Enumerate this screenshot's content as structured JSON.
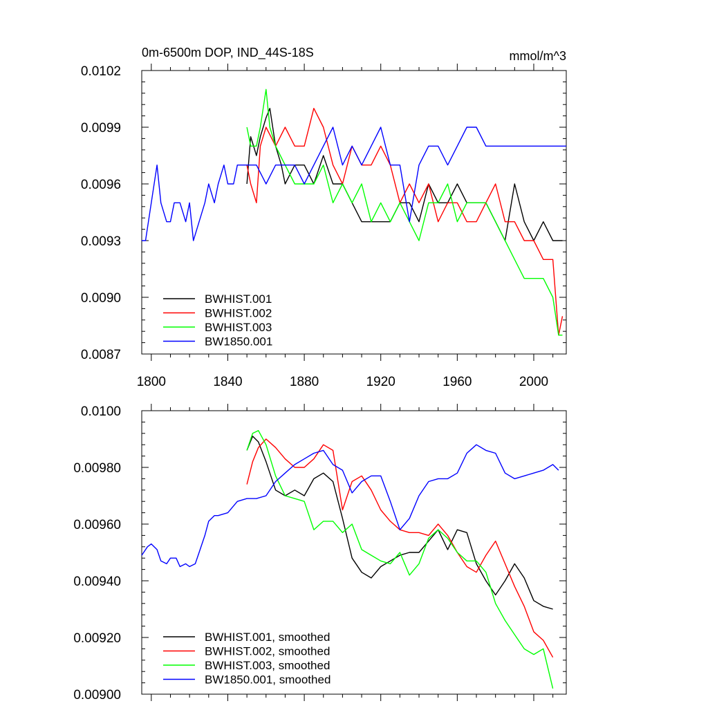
{
  "chart_data": [
    {
      "type": "line",
      "title_left": "0m-6500m DOP, IND_44S-18S",
      "title_right": "mmol/m^3",
      "xlim": [
        1795,
        2017
      ],
      "ylim": [
        0.0087,
        0.0102
      ],
      "x_ticks": [
        1800,
        1840,
        1880,
        1920,
        1960,
        2000
      ],
      "x_tick_labels": [
        "1800",
        "1840",
        "1880",
        "1920",
        "1960",
        "2000"
      ],
      "y_ticks": [
        0.0087,
        0.009,
        0.0093,
        0.0096,
        0.0099,
        0.0102
      ],
      "y_tick_labels": [
        "0.0087",
        "0.0090",
        "0.0093",
        "0.0096",
        "0.0099",
        "0.0102"
      ],
      "legend_position": "bottom-left",
      "series": [
        {
          "name": "BWHIST.001",
          "color": "#000000",
          "x": [
            1850,
            1852,
            1855,
            1857,
            1860,
            1862,
            1865,
            1868,
            1870,
            1875,
            1880,
            1885,
            1890,
            1895,
            1900,
            1905,
            1910,
            1915,
            1920,
            1925,
            1930,
            1935,
            1940,
            1945,
            1950,
            1955,
            1960,
            1965,
            1970,
            1975,
            1980,
            1985,
            1990,
            1995,
            2000,
            2005,
            2010,
            2015
          ],
          "y": [
            0.0096,
            0.00985,
            0.00975,
            0.00985,
            0.00995,
            0.01,
            0.0098,
            0.0097,
            0.0096,
            0.0097,
            0.0097,
            0.0096,
            0.00975,
            0.0096,
            0.0096,
            0.0095,
            0.0094,
            0.0094,
            0.0094,
            0.0094,
            0.0095,
            0.0095,
            0.0094,
            0.0096,
            0.0095,
            0.0095,
            0.0096,
            0.0095,
            0.0095,
            0.0095,
            0.0094,
            0.0093,
            0.0096,
            0.0094,
            0.0093,
            0.0094,
            0.0093,
            0.0093
          ]
        },
        {
          "name": "BWHIST.002",
          "color": "#ff0000",
          "x": [
            1850,
            1852,
            1855,
            1857,
            1860,
            1865,
            1870,
            1875,
            1880,
            1885,
            1890,
            1895,
            1900,
            1905,
            1910,
            1915,
            1920,
            1925,
            1930,
            1935,
            1940,
            1945,
            1950,
            1955,
            1960,
            1965,
            1970,
            1975,
            1980,
            1985,
            1990,
            1995,
            2000,
            2005,
            2010,
            2013,
            2015
          ],
          "y": [
            0.0097,
            0.0096,
            0.0095,
            0.0098,
            0.0099,
            0.0098,
            0.0099,
            0.0098,
            0.0098,
            0.01,
            0.0099,
            0.0097,
            0.0096,
            0.0098,
            0.0097,
            0.0097,
            0.0098,
            0.0097,
            0.0095,
            0.0096,
            0.0095,
            0.0096,
            0.0094,
            0.0095,
            0.0095,
            0.0094,
            0.0094,
            0.0095,
            0.0096,
            0.0094,
            0.0094,
            0.0093,
            0.0093,
            0.0092,
            0.0092,
            0.0088,
            0.0089
          ]
        },
        {
          "name": "BWHIST.003",
          "color": "#00ff00",
          "x": [
            1850,
            1852,
            1855,
            1857,
            1860,
            1862,
            1865,
            1870,
            1875,
            1880,
            1885,
            1890,
            1895,
            1900,
            1905,
            1910,
            1915,
            1920,
            1925,
            1930,
            1935,
            1940,
            1945,
            1950,
            1955,
            1960,
            1965,
            1970,
            1975,
            1980,
            1985,
            1990,
            1995,
            2000,
            2005,
            2010,
            2013,
            2015
          ],
          "y": [
            0.0099,
            0.0098,
            0.0098,
            0.0099,
            0.0101,
            0.0099,
            0.0098,
            0.0097,
            0.0096,
            0.0096,
            0.0096,
            0.0097,
            0.0095,
            0.0096,
            0.0095,
            0.0096,
            0.0094,
            0.0095,
            0.0094,
            0.0095,
            0.0094,
            0.0093,
            0.0095,
            0.0095,
            0.0096,
            0.0094,
            0.0095,
            0.0095,
            0.0095,
            0.0094,
            0.0093,
            0.0092,
            0.0091,
            0.0091,
            0.0091,
            0.009,
            0.0088,
            0.0088
          ]
        },
        {
          "name": "BW1850.001",
          "color": "#0000ff",
          "x": [
            1795,
            1797,
            1800,
            1803,
            1805,
            1808,
            1810,
            1812,
            1815,
            1818,
            1820,
            1822,
            1825,
            1828,
            1830,
            1833,
            1835,
            1838,
            1840,
            1843,
            1845,
            1850,
            1855,
            1860,
            1865,
            1870,
            1875,
            1880,
            1885,
            1890,
            1895,
            1900,
            1905,
            1910,
            1915,
            1920,
            1925,
            1930,
            1935,
            1940,
            1945,
            1950,
            1955,
            1960,
            1965,
            1970,
            1975,
            1980,
            1985,
            1990,
            1995,
            2000,
            2005,
            2010,
            2015,
            2017
          ],
          "y": [
            0.0093,
            0.0093,
            0.0095,
            0.0097,
            0.0095,
            0.0094,
            0.0094,
            0.0095,
            0.0095,
            0.0094,
            0.0095,
            0.0093,
            0.0094,
            0.0095,
            0.0096,
            0.0095,
            0.0096,
            0.0097,
            0.0096,
            0.0096,
            0.0097,
            0.0097,
            0.0097,
            0.0096,
            0.0097,
            0.0097,
            0.0097,
            0.0096,
            0.0097,
            0.0098,
            0.0099,
            0.0097,
            0.0098,
            0.0097,
            0.0098,
            0.0099,
            0.0097,
            0.0097,
            0.0094,
            0.0097,
            0.0098,
            0.0098,
            0.0097,
            0.0098,
            0.0099,
            0.0099,
            0.0098,
            0.0098,
            0.0098,
            0.0098,
            0.0098,
            0.0098,
            0.0098,
            0.0098,
            0.0098,
            0.0098
          ]
        }
      ]
    },
    {
      "type": "line",
      "xlim": [
        1795,
        2017
      ],
      "ylim": [
        0.009,
        0.01
      ],
      "x_ticks": [
        1800,
        1840,
        1880,
        1920,
        1960,
        2000
      ],
      "y_ticks": [
        0.009,
        0.0092,
        0.0094,
        0.0096,
        0.0098,
        0.01
      ],
      "y_tick_labels": [
        "0.00900",
        "0.00920",
        "0.00940",
        "0.00960",
        "0.00980",
        "0.0100"
      ],
      "legend_position": "bottom-left",
      "series": [
        {
          "name": "BWHIST.001, smoothed",
          "color": "#000000",
          "x": [
            1850,
            1853,
            1856,
            1860,
            1865,
            1870,
            1875,
            1880,
            1885,
            1890,
            1895,
            1900,
            1905,
            1910,
            1915,
            1920,
            1925,
            1930,
            1935,
            1940,
            1945,
            1950,
            1955,
            1960,
            1965,
            1970,
            1975,
            1980,
            1985,
            1990,
            1995,
            2000,
            2005,
            2010
          ],
          "y": [
            0.00986,
            0.00991,
            0.00989,
            0.00982,
            0.00972,
            0.0097,
            0.00972,
            0.0097,
            0.00976,
            0.00978,
            0.00975,
            0.00962,
            0.00948,
            0.00943,
            0.00941,
            0.00945,
            0.00947,
            0.00949,
            0.0095,
            0.0095,
            0.00954,
            0.00958,
            0.00951,
            0.00958,
            0.00957,
            0.00946,
            0.0094,
            0.00935,
            0.0094,
            0.00946,
            0.00941,
            0.00933,
            0.00931,
            0.0093
          ]
        },
        {
          "name": "BWHIST.002, smoothed",
          "color": "#ff0000",
          "x": [
            1850,
            1853,
            1856,
            1860,
            1865,
            1870,
            1875,
            1880,
            1885,
            1890,
            1895,
            1900,
            1905,
            1910,
            1915,
            1920,
            1925,
            1930,
            1935,
            1940,
            1945,
            1950,
            1955,
            1960,
            1965,
            1970,
            1975,
            1980,
            1985,
            1990,
            1995,
            2000,
            2005,
            2010
          ],
          "y": [
            0.00974,
            0.00982,
            0.00987,
            0.0099,
            0.00987,
            0.00983,
            0.0098,
            0.0098,
            0.00983,
            0.00988,
            0.00986,
            0.00965,
            0.00975,
            0.00977,
            0.00972,
            0.00965,
            0.00961,
            0.00958,
            0.00957,
            0.00957,
            0.00956,
            0.0096,
            0.00956,
            0.0095,
            0.00945,
            0.00943,
            0.00949,
            0.00954,
            0.00946,
            0.00938,
            0.00931,
            0.00922,
            0.00919,
            0.00913
          ]
        },
        {
          "name": "BWHIST.003, smoothed",
          "color": "#00ff00",
          "x": [
            1850,
            1853,
            1856,
            1860,
            1865,
            1870,
            1875,
            1880,
            1885,
            1890,
            1895,
            1900,
            1905,
            1910,
            1915,
            1920,
            1925,
            1930,
            1935,
            1940,
            1945,
            1950,
            1955,
            1960,
            1965,
            1970,
            1975,
            1980,
            1985,
            1990,
            1995,
            2000,
            2005,
            2010
          ],
          "y": [
            0.00986,
            0.00992,
            0.00993,
            0.00988,
            0.00977,
            0.0097,
            0.00969,
            0.00968,
            0.00958,
            0.00961,
            0.00961,
            0.00957,
            0.0096,
            0.00951,
            0.00949,
            0.00947,
            0.00946,
            0.0095,
            0.00942,
            0.00946,
            0.00955,
            0.00958,
            0.00955,
            0.0095,
            0.00947,
            0.00947,
            0.00943,
            0.00932,
            0.00926,
            0.00921,
            0.00916,
            0.00914,
            0.00916,
            0.00902
          ]
        },
        {
          "name": "BW1850.001, smoothed",
          "color": "#0000ff",
          "x": [
            1795,
            1798,
            1800,
            1803,
            1805,
            1808,
            1810,
            1813,
            1815,
            1818,
            1820,
            1823,
            1825,
            1828,
            1830,
            1833,
            1835,
            1840,
            1845,
            1850,
            1855,
            1860,
            1865,
            1870,
            1875,
            1880,
            1885,
            1890,
            1895,
            1900,
            1905,
            1910,
            1915,
            1920,
            1925,
            1930,
            1935,
            1940,
            1945,
            1950,
            1955,
            1960,
            1965,
            1970,
            1975,
            1980,
            1985,
            1990,
            1995,
            2000,
            2005,
            2010,
            2013
          ],
          "y": [
            0.00949,
            0.00952,
            0.00953,
            0.00951,
            0.00947,
            0.00946,
            0.00948,
            0.00948,
            0.00945,
            0.00946,
            0.00945,
            0.00946,
            0.0095,
            0.00956,
            0.00961,
            0.00963,
            0.00963,
            0.00964,
            0.00968,
            0.00969,
            0.00969,
            0.0097,
            0.00975,
            0.00978,
            0.00981,
            0.00983,
            0.00985,
            0.00986,
            0.00981,
            0.00979,
            0.00971,
            0.00975,
            0.00977,
            0.00977,
            0.00968,
            0.00958,
            0.00962,
            0.0097,
            0.00975,
            0.00976,
            0.00976,
            0.00978,
            0.00985,
            0.00988,
            0.00986,
            0.00985,
            0.00978,
            0.00976,
            0.00977,
            0.00978,
            0.00979,
            0.00981,
            0.00979
          ]
        }
      ]
    }
  ]
}
